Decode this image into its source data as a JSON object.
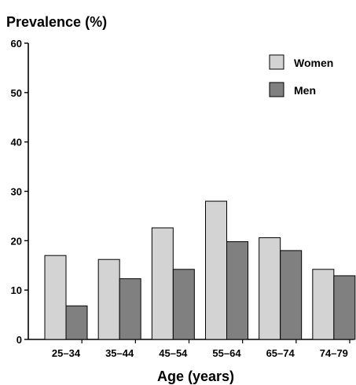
{
  "chart_data": {
    "type": "bar",
    "ylabel": "Prevalence (%)",
    "xlabel": "Age (years)",
    "ylim": [
      0,
      60
    ],
    "yticks": [
      0,
      10,
      20,
      30,
      40,
      50,
      60
    ],
    "grid": false,
    "legend_position": "top-right",
    "categories": [
      "25–34",
      "35–44",
      "45–54",
      "55–64",
      "65–74",
      "74–79"
    ],
    "series": [
      {
        "name": "Women",
        "color": "#d3d3d3",
        "values": [
          17.0,
          16.2,
          22.6,
          28.0,
          20.6,
          14.2
        ]
      },
      {
        "name": "Men",
        "color": "#808080",
        "values": [
          6.8,
          12.3,
          14.2,
          19.8,
          18.0,
          12.9
        ]
      }
    ]
  }
}
